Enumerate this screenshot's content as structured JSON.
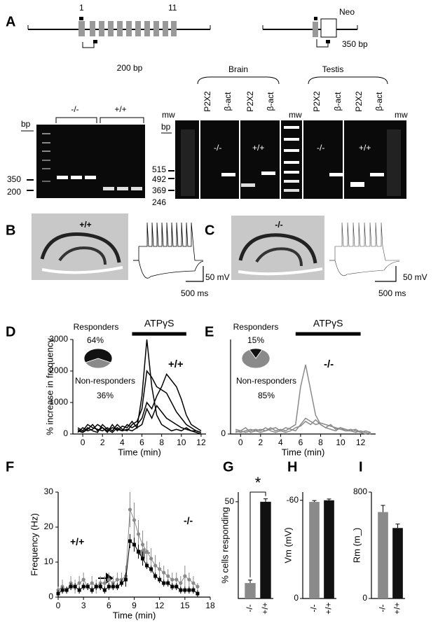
{
  "panels": {
    "letters": [
      "A",
      "B",
      "C",
      "D",
      "E",
      "F",
      "G",
      "H",
      "I"
    ],
    "gene": {
      "exon_first": "1",
      "exon_last": "11",
      "product": "200 bp"
    },
    "construct": {
      "cassette": "Neo",
      "product": "350 bp"
    },
    "gel_left": {
      "unit": "bp",
      "groups": [
        "-/-",
        "+/+"
      ],
      "sizes": [
        "350",
        "200"
      ]
    },
    "gel_right": {
      "unit": "bp",
      "tissues": [
        "Brain",
        "Testis"
      ],
      "ladder": [
        "mw",
        "mw",
        "mw"
      ],
      "lanes": [
        "P2X2",
        "β-act",
        "P2X2",
        "β-act",
        "P2X2",
        "β-act",
        "P2X2",
        "β-act"
      ],
      "groups": [
        "-/-",
        "+/+",
        "-/-",
        "+/+"
      ],
      "sizes": [
        "515",
        "492",
        "369",
        "246"
      ]
    },
    "slice_b": {
      "genotype": "+/+",
      "scale_v": "50 mV",
      "scale_t": "500 ms"
    },
    "slice_c": {
      "genotype": "-/-",
      "scale_v": "50 mV",
      "scale_t": "500 ms"
    }
  },
  "chart_data": [
    {
      "type": "pie",
      "categories": [
        "Responders",
        "Non-responders"
      ],
      "values": [
        64,
        36
      ],
      "value_labels": [
        "64%",
        "36%"
      ],
      "colors": [
        "#111111",
        "#8a8a8a"
      ]
    },
    {
      "type": "line",
      "xlabel": "Time (min)",
      "ylabel": "% increase in frequency",
      "annotation": "+/+",
      "event": {
        "label": "ATPγS",
        "start": 5,
        "end": 10.5
      },
      "x": [
        -0.5,
        0,
        0.5,
        1,
        1.5,
        2,
        2.5,
        3,
        3.5,
        4,
        4.5,
        5,
        5.5,
        6,
        6.5,
        7,
        7.5,
        8,
        8.5,
        9,
        9.5,
        10,
        10.5,
        11,
        11.5,
        12
      ],
      "series": [
        {
          "color": "#000000",
          "values": [
            100,
            50,
            150,
            300,
            100,
            200,
            50,
            300,
            100,
            250,
            200,
            400,
            200,
            1200,
            3000,
            1500,
            600,
            300,
            200,
            100,
            150,
            100,
            200,
            100,
            50,
            0
          ]
        },
        {
          "color": "#000000",
          "values": [
            200,
            100,
            300,
            200,
            150,
            100,
            200,
            100,
            300,
            150,
            100,
            300,
            400,
            800,
            2000,
            1800,
            1500,
            1400,
            1300,
            1000,
            700,
            500,
            300,
            200,
            100,
            50
          ]
        },
        {
          "color": "#000000",
          "values": [
            50,
            200,
            100,
            150,
            300,
            200,
            100,
            200,
            150,
            100,
            300,
            200,
            300,
            500,
            1000,
            800,
            1200,
            1500,
            1900,
            1700,
            1500,
            1100,
            600,
            300,
            200,
            100
          ]
        },
        {
          "color": "#000000",
          "values": [
            150,
            50,
            200,
            100,
            50,
            300,
            150,
            50,
            200,
            100,
            150,
            100,
            200,
            300,
            800,
            500,
            900,
            700,
            500,
            400,
            300,
            200,
            150,
            100,
            100,
            50
          ]
        }
      ],
      "xlim": [
        -1,
        12.5
      ],
      "xticks": [
        0,
        2,
        4,
        6,
        8,
        10,
        12
      ],
      "ylim": [
        0,
        3000
      ],
      "yticks": [
        0,
        1000,
        2000,
        3000
      ]
    },
    {
      "type": "pie",
      "categories": [
        "Responders",
        "Non-responders"
      ],
      "values": [
        15,
        85
      ],
      "value_labels": [
        "15%",
        "85%"
      ],
      "colors": [
        "#111111",
        "#8a8a8a"
      ]
    },
    {
      "type": "line",
      "xlabel": "Time (min)",
      "annotation": "-/-",
      "event": {
        "label": "ATPγS",
        "start": 5.5,
        "end": 12
      },
      "x": [
        -0.5,
        0,
        0.5,
        1,
        1.5,
        2,
        2.5,
        3,
        3.5,
        4,
        4.5,
        5,
        5.5,
        6,
        6.5,
        7,
        7.5,
        8,
        8.5,
        9,
        9.5,
        10,
        10.5,
        11,
        11.5,
        12,
        12.5,
        13
      ],
      "series": [
        {
          "color": "#8a8a8a",
          "values": [
            100,
            50,
            100,
            150,
            100,
            50,
            100,
            200,
            100,
            150,
            100,
            200,
            300,
            1500,
            2200,
            1400,
            600,
            300,
            200,
            150,
            100,
            200,
            100,
            150,
            100,
            50,
            100,
            50
          ]
        },
        {
          "color": "#8a8a8a",
          "values": [
            50,
            100,
            50,
            100,
            150,
            100,
            200,
            100,
            50,
            100,
            200,
            150,
            100,
            300,
            500,
            400,
            300,
            350,
            300,
            250,
            200,
            150,
            100,
            100,
            50,
            100,
            50,
            0
          ]
        },
        {
          "color": "#8a8a8a",
          "values": [
            150,
            100,
            200,
            50,
            100,
            150,
            100,
            150,
            200,
            100,
            50,
            100,
            200,
            250,
            400,
            300,
            450,
            300,
            200,
            300,
            150,
            200,
            150,
            100,
            150,
            50,
            0,
            50
          ]
        }
      ],
      "xlim": [
        -1,
        13.5
      ],
      "xticks": [
        0,
        2,
        4,
        6,
        8,
        10,
        12
      ],
      "ylim": [
        0,
        3000
      ],
      "yticks": [
        0
      ]
    },
    {
      "type": "line",
      "xlabel": "Time (min)",
      "ylabel": "Frequency (Hz)",
      "markers": true,
      "x": [
        0,
        0.5,
        1,
        1.5,
        2,
        2.5,
        3,
        3.5,
        4,
        4.5,
        5,
        5.5,
        6,
        6.5,
        7,
        7.5,
        8,
        8.5,
        9,
        9.5,
        10,
        10.5,
        11,
        11.5,
        12,
        12.5,
        13,
        13.5,
        14,
        14.5,
        15,
        15.5,
        16,
        16.5
      ],
      "series": [
        {
          "name": "-/-",
          "color": "#8a8a8a",
          "values": [
            2,
            3,
            2,
            4,
            3,
            4,
            5,
            3,
            4,
            3,
            4,
            4,
            5,
            4,
            5,
            5,
            6,
            25,
            22,
            18,
            15,
            13,
            11,
            9,
            8,
            7,
            6,
            5,
            5,
            4,
            6,
            5,
            4,
            3
          ],
          "errors": [
            1,
            2,
            1,
            2,
            2,
            2,
            2,
            1,
            2,
            2,
            2,
            2,
            2,
            2,
            2,
            2,
            3,
            5,
            5,
            4,
            4,
            3,
            3,
            3,
            2,
            2,
            2,
            2,
            2,
            2,
            3,
            2,
            2,
            1
          ]
        },
        {
          "name": "+/+",
          "color": "#000000",
          "values": [
            1,
            2,
            2,
            3,
            3,
            2,
            3,
            3,
            2,
            3,
            3,
            2,
            3,
            3,
            3,
            4,
            5,
            16,
            15,
            13,
            11,
            9,
            8,
            6,
            5,
            4,
            4,
            3,
            3,
            2,
            2,
            2,
            2,
            1
          ],
          "errors": [
            1,
            1,
            1,
            1,
            1,
            1,
            1,
            1,
            1,
            1,
            1,
            1,
            1,
            1,
            1,
            1,
            2,
            2,
            2,
            2,
            2,
            1,
            1,
            1,
            1,
            1,
            1,
            1,
            1,
            1,
            1,
            1,
            1,
            1
          ]
        }
      ],
      "xlim": [
        0,
        18
      ],
      "xticks": [
        0,
        3,
        6,
        9,
        12,
        15,
        18
      ],
      "ylim": [
        0,
        30
      ],
      "yticks": [
        0,
        10,
        20,
        30
      ]
    },
    {
      "type": "bar",
      "ylabel": "% cells responding",
      "annotation": "*",
      "categories": [
        "-/-",
        "+/+"
      ],
      "values": [
        8,
        50
      ],
      "errors": [
        1.5,
        1.5
      ],
      "colors": [
        "#8a8a8a",
        "#111111"
      ],
      "ylim": [
        0,
        55
      ],
      "yticks": [
        50
      ]
    },
    {
      "type": "bar",
      "ylabel": "Vm  (mV)",
      "categories": [
        "-/-",
        "+/+"
      ],
      "values": [
        -59,
        -60
      ],
      "errors": [
        0.8,
        0.8
      ],
      "colors": [
        "#8a8a8a",
        "#111111"
      ],
      "ylim": [
        0,
        -65
      ],
      "yticks": [
        0,
        -60
      ]
    },
    {
      "type": "bar",
      "ylabel": "Rm (m_)",
      "categories": [
        "-/-",
        "+/+"
      ],
      "values": [
        650,
        530
      ],
      "errors": [
        50,
        30
      ],
      "colors": [
        "#8a8a8a",
        "#111111"
      ],
      "ylim": [
        0,
        800
      ],
      "yticks": [
        0,
        800
      ]
    }
  ]
}
